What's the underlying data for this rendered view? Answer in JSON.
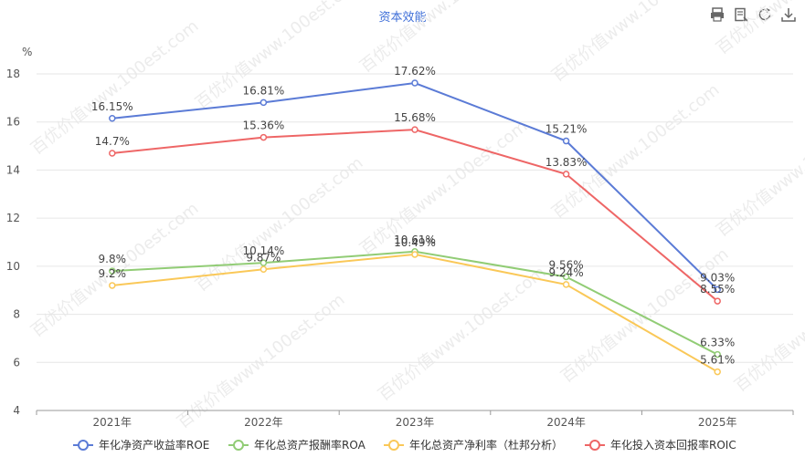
{
  "title": "资本效能",
  "toolbar": [
    {
      "name": "print-icon"
    },
    {
      "name": "data-view-icon"
    },
    {
      "name": "restore-icon"
    },
    {
      "name": "download-icon"
    }
  ],
  "watermark": "百优价值www.100est.com",
  "chart_data": {
    "type": "line",
    "ylabel": "%",
    "ylim": [
      4,
      18
    ],
    "yticks": [
      4,
      6,
      8,
      10,
      12,
      14,
      16,
      18
    ],
    "categories": [
      "2021年",
      "2022年",
      "2023年",
      "2024年",
      "2025年"
    ],
    "grid": true,
    "legend_position": "bottom",
    "series": [
      {
        "name": "年化净资产收益率ROE",
        "color": "#5b7bd6",
        "values": [
          16.15,
          16.81,
          17.62,
          15.21,
          9.03
        ],
        "labels": [
          "16.15%",
          "16.81%",
          "17.62%",
          "15.21%",
          "9.03%"
        ]
      },
      {
        "name": "年化总资产报酬率ROA",
        "color": "#91cc75",
        "values": [
          9.8,
          10.14,
          10.61,
          9.56,
          6.33
        ],
        "labels": [
          "9.8%",
          "10.14%",
          "10.61%",
          "9.56%",
          "6.33%"
        ]
      },
      {
        "name": "年化总资产净利率（杜邦分析）",
        "color": "#fac858",
        "values": [
          9.2,
          9.87,
          10.49,
          9.24,
          5.61
        ],
        "labels": [
          "9.2%",
          "9.87%",
          "10.49%",
          "9.24%",
          "5.61%"
        ]
      },
      {
        "name": "年化投入资本回报率ROIC",
        "color": "#ee6666",
        "values": [
          14.7,
          15.36,
          15.68,
          13.83,
          8.55
        ],
        "labels": [
          "14.7%",
          "15.36%",
          "15.68%",
          "13.83%",
          "8.55%"
        ]
      }
    ]
  }
}
